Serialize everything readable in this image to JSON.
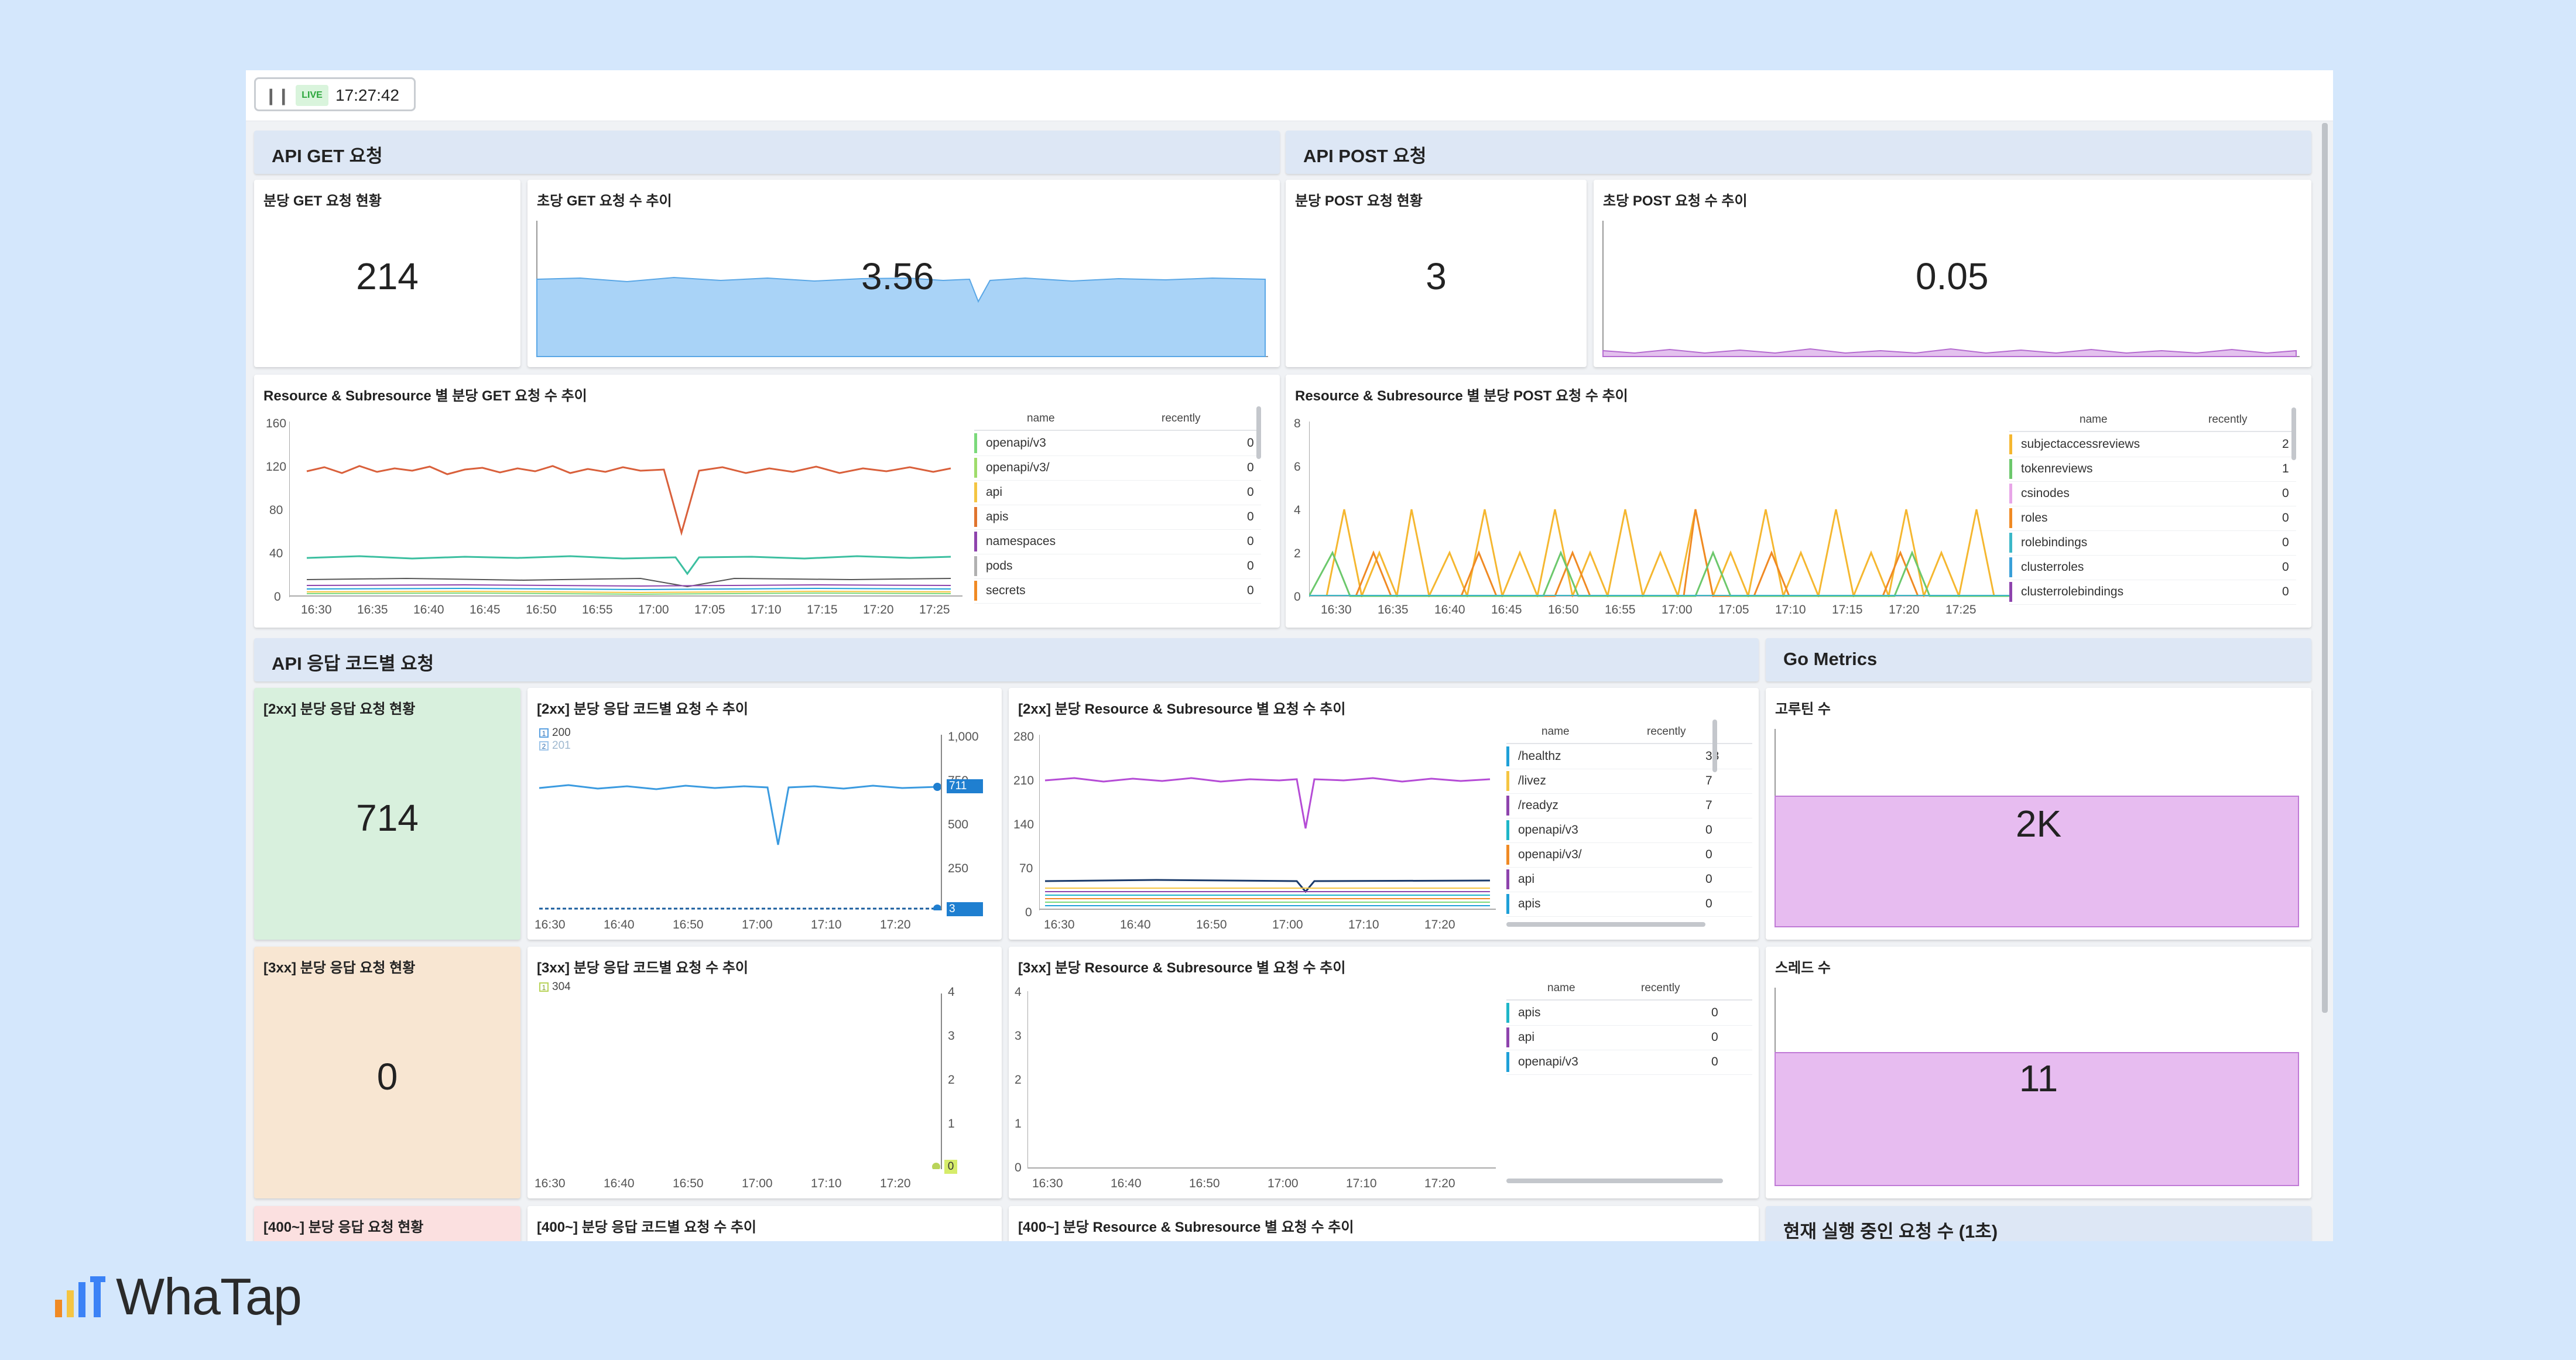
{
  "toolbar": {
    "pause_icon": "pause-icon",
    "live_badge": "LIVE",
    "time": "17:27:42"
  },
  "sections": {
    "api_get": "API GET 요청",
    "api_post": "API POST 요청",
    "response_code": "API 응답 코드별 요청",
    "go_metrics": "Go Metrics"
  },
  "panels": {
    "get_count_title": "분당 GET 요청 현황",
    "get_count_value": "214",
    "get_rate_title": "초당 GET 요청 수 추이",
    "get_rate_value": "3.56",
    "post_count_title": "분당 POST 요청 현황",
    "post_count_value": "3",
    "post_rate_title": "초당 POST 요청 수 추이",
    "post_rate_value": "0.05",
    "get_resource_title": "Resource & Subresource 별 분당 GET 요청 수 추이",
    "post_resource_title": "Resource & Subresource 별 분당 POST 요청 수 추이",
    "r2xx_count_title": "[2xx] 분당 응답 요청 현황",
    "r2xx_count_value": "714",
    "r2xx_trend_title": "[2xx] 분당 응답 코드별 요청 수 추이",
    "r2xx_resource_title": "[2xx] 분당 Resource & Subresource 별 요청 수 추이",
    "goroutine_title": "고루틴 수",
    "goroutine_value": "2K",
    "r3xx_count_title": "[3xx] 분당 응답 요청 현황",
    "r3xx_count_value": "0",
    "r3xx_trend_title": "[3xx] 분당 응답 코드별 요청 수 추이",
    "r3xx_resource_title": "[3xx] 분당 Resource & Subresource 별 요청 수 추이",
    "thread_title": "스레드 수",
    "thread_value": "11",
    "r400_count_title": "[400~] 분당 응답 요청 현황",
    "r400_trend_title": "[400~] 분당 응답 코드별 요청 수 추이",
    "r400_resource_title": "[400~] 분당 Resource & Subresource 별 요청 수 추이",
    "inflight_title": "현재 실행 중인 요청 수 (1초)"
  },
  "legend_tables": {
    "col_name": "name",
    "col_recent": "recently",
    "get_rows": [
      {
        "name": "openapi/v3",
        "value": "0",
        "color": "#7bd97b"
      },
      {
        "name": "openapi/v3/",
        "value": "0",
        "color": "#9fdc6b"
      },
      {
        "name": "api",
        "value": "0",
        "color": "#f4c542"
      },
      {
        "name": "apis",
        "value": "0",
        "color": "#e0742e"
      },
      {
        "name": "namespaces",
        "value": "0",
        "color": "#8e44ad"
      },
      {
        "name": "pods",
        "value": "0",
        "color": "#b0b0b0"
      },
      {
        "name": "secrets",
        "value": "0",
        "color": "#f08a24"
      }
    ],
    "post_rows": [
      {
        "name": "subjectaccessreviews",
        "value": "2",
        "color": "#f5b730"
      },
      {
        "name": "tokenreviews",
        "value": "1",
        "color": "#6cc86c"
      },
      {
        "name": "csinodes",
        "value": "0",
        "color": "#e8a6e8"
      },
      {
        "name": "roles",
        "value": "0",
        "color": "#f08a24"
      },
      {
        "name": "rolebindings",
        "value": "0",
        "color": "#3cb8c8"
      },
      {
        "name": "clusterroles",
        "value": "0",
        "color": "#3aa0d8"
      },
      {
        "name": "clusterrolebindings",
        "value": "0",
        "color": "#8e44ad"
      }
    ],
    "r2xx_rows": [
      {
        "name": "/healthz",
        "value": "38",
        "color": "#1fa0d8"
      },
      {
        "name": "/livez",
        "value": "7",
        "color": "#f5c542"
      },
      {
        "name": "/readyz",
        "value": "7",
        "color": "#8e44ad"
      },
      {
        "name": "openapi/v3",
        "value": "0",
        "color": "#1fb6c8"
      },
      {
        "name": "openapi/v3/",
        "value": "0",
        "color": "#f08a24"
      },
      {
        "name": "api",
        "value": "0",
        "color": "#8e44ad"
      },
      {
        "name": "apis",
        "value": "0",
        "color": "#1fa0d8"
      }
    ],
    "r3xx_rows": [
      {
        "name": "apis",
        "value": "0",
        "color": "#1fb6c8"
      },
      {
        "name": "api",
        "value": "0",
        "color": "#8e44ad"
      },
      {
        "name": "openapi/v3",
        "value": "0",
        "color": "#1fa0d8"
      }
    ]
  },
  "legends": {
    "r2xx_series": [
      "200",
      "201"
    ],
    "r3xx_series": [
      "304"
    ]
  },
  "axes": {
    "get_y": [
      "160",
      "120",
      "80",
      "40",
      "0"
    ],
    "get_x": [
      "16:30",
      "16:35",
      "16:40",
      "16:45",
      "16:50",
      "16:55",
      "17:00",
      "17:05",
      "17:10",
      "17:15",
      "17:20",
      "17:25"
    ],
    "post_y": [
      "8",
      "6",
      "4",
      "2",
      "0"
    ],
    "post_x": [
      "16:30",
      "16:35",
      "16:40",
      "16:45",
      "16:50",
      "16:55",
      "17:00",
      "17:05",
      "17:10",
      "17:15",
      "17:20",
      "17:25"
    ],
    "r2xx_y": [
      "1,000",
      "750",
      "500",
      "250",
      "0"
    ],
    "r2xx_marker_top": "711",
    "r2xx_marker_bottom": "3",
    "r2xx_x": [
      "16:30",
      "16:40",
      "16:50",
      "17:00",
      "17:10",
      "17:20"
    ],
    "r2xx_res_y": [
      "280",
      "210",
      "140",
      "70",
      "0"
    ],
    "r2xx_res_x": [
      "16:30",
      "16:40",
      "16:50",
      "17:00",
      "17:10",
      "17:20"
    ],
    "r3xx_y": [
      "4",
      "3",
      "2",
      "1",
      "0"
    ],
    "r3xx_marker": "0",
    "r3xx_x": [
      "16:30",
      "16:40",
      "16:50",
      "17:00",
      "17:10",
      "17:20"
    ],
    "r3xx_res_y": [
      "4",
      "3",
      "2",
      "1",
      "0"
    ],
    "r3xx_res_x": [
      "16:30",
      "16:40",
      "16:50",
      "17:00",
      "17:10",
      "17:20"
    ]
  },
  "brand": {
    "name": "WhaTap",
    "logo_icon": "bar-chart-logo-icon"
  },
  "colors": {
    "get_area": "#a9d3f7",
    "post_area": "#d9a6e8",
    "r2xx_card": "#d8f0dd",
    "r3xx_card": "#f8e6d2",
    "r400_card": "#fbe0e0",
    "go_area": "#e7bcf0"
  }
}
